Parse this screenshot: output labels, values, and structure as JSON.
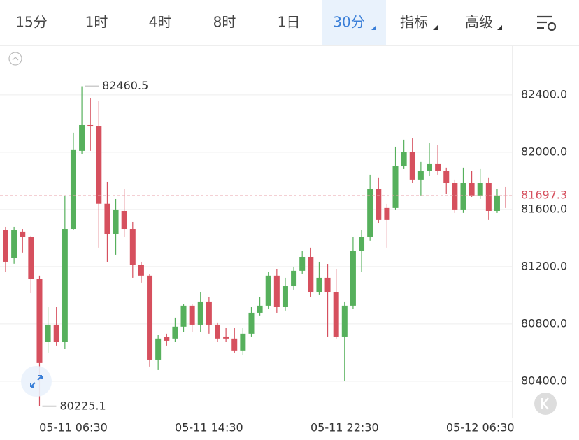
{
  "tabs": [
    "15分",
    "1时",
    "4时",
    "8时",
    "1日",
    "30分",
    "指标",
    "高级"
  ],
  "chart_data": {
    "type": "candlestick",
    "categories": [
      null,
      null,
      null,
      null,
      null,
      null,
      null,
      null,
      "05-11 06:30",
      null,
      null,
      null,
      null,
      null,
      null,
      null,
      null,
      null,
      null,
      null,
      null,
      null,
      null,
      null,
      "05-11 14:30",
      null,
      null,
      null,
      null,
      null,
      null,
      null,
      null,
      null,
      null,
      null,
      null,
      null,
      null,
      null,
      "05-11 22:30",
      null,
      null,
      null,
      null,
      null,
      null,
      null,
      null,
      null,
      null,
      null,
      null,
      null,
      null,
      null,
      "05-12 06:30",
      null,
      null,
      null
    ],
    "open": [
      81454,
      81259,
      81444,
      81405,
      81112,
      80673,
      80795,
      80673,
      81463,
      82010,
      82190,
      82180,
      81640,
      81429,
      81590,
      81463,
      81210,
      81137,
      80551,
      80707,
      80698,
      80781,
      80927,
      80795,
      80956,
      80795,
      80712,
      80698,
      80615,
      80732,
      80878,
      80927,
      81137,
      80917,
      81063,
      81171,
      81268,
      81024,
      81122,
      81024,
      80712,
      80927,
      81307,
      81405,
      81746,
      81610,
      81610,
      81902,
      82000,
      81805,
      81868,
      81917,
      81868,
      81785,
      81600,
      81785,
      81698,
      81785,
      81590,
      81698
    ],
    "high": [
      81478,
      81478,
      81463,
      81415,
      81137,
      80917,
      80917,
      81698,
      82137,
      82460.5,
      82380,
      82356,
      81795,
      81673,
      81746,
      81512,
      81234,
      81151,
      80722,
      80732,
      80844,
      80941,
      80941,
      81024,
      80990,
      80810,
      80771,
      80771,
      80771,
      80917,
      80990,
      81161,
      81185,
      81122,
      81200,
      81307,
      81332,
      81234,
      81219,
      81185,
      80956,
      81405,
      81454,
      81844,
      81820,
      81639,
      82039,
      82088,
      82097,
      81932,
      82063,
      82049,
      81893,
      81805,
      81893,
      81868,
      81883,
      81820,
      81746,
      81756
    ],
    "low": [
      81161,
      81220,
      81298,
      81015,
      80225.1,
      80600,
      80649,
      80624,
      81454,
      81990,
      82010,
      81332,
      81234,
      81283,
      81405,
      81122,
      81088,
      80503,
      80478,
      80649,
      80673,
      80746,
      80746,
      80746,
      80732,
      80673,
      80673,
      80600,
      80585,
      80712,
      80859,
      80907,
      80878,
      80893,
      81039,
      81151,
      80990,
      81005,
      80712,
      80698,
      80400,
      80907,
      81161,
      81381,
      81502,
      81332,
      81600,
      81883,
      81785,
      81698,
      81834,
      81844,
      81707,
      81576,
      81576,
      81688,
      81673,
      81527,
      81576,
      81610
    ],
    "close": [
      81234,
      81454,
      81405,
      81112,
      80527,
      80795,
      80673,
      81463,
      82015,
      82190,
      82180,
      81640,
      81429,
      81600,
      81463,
      81210,
      81137,
      80551,
      80698,
      80683,
      80781,
      80927,
      80795,
      80956,
      80795,
      80698,
      80698,
      80615,
      80732,
      80878,
      80927,
      81137,
      80917,
      81063,
      81171,
      81268,
      81024,
      81122,
      81024,
      80712,
      80927,
      81307,
      81405,
      81746,
      81527,
      81527,
      81902,
      82000,
      81805,
      81868,
      81917,
      81868,
      81785,
      81600,
      81785,
      81698,
      81785,
      81590,
      81698,
      81697.3
    ],
    "ylim": [
      80146,
      82746
    ],
    "yticks": [
      {
        "value": 80400,
        "label": "80400.0"
      },
      {
        "value": 80800,
        "label": "80800.0"
      },
      {
        "value": 81200,
        "label": "81200.0"
      },
      {
        "value": 81600,
        "label": "81600.0"
      },
      {
        "value": 82000,
        "label": "82000.0"
      },
      {
        "value": 82400,
        "label": "82400.0"
      }
    ],
    "up_color": "#56b05c",
    "down_color": "#d6505e",
    "grid": true
  }
}
